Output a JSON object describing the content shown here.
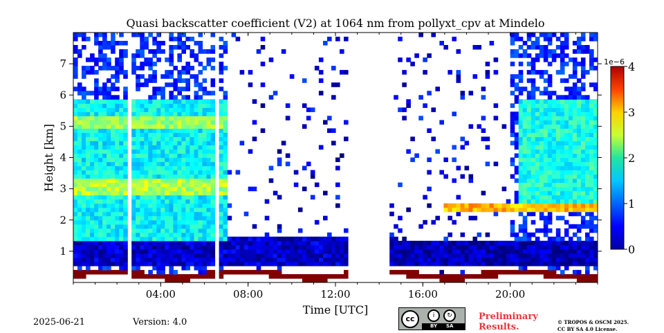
{
  "chart_data": {
    "type": "heatmap",
    "title": "Quasi backscatter coefficient (V2) at 1064 nm from pollyxt_cpv at Mindelo",
    "xlabel": "Time [UTC]",
    "ylabel": "Height [km]",
    "xlim": [
      0,
      24
    ],
    "ylim": [
      0,
      8
    ],
    "x_ticks": [
      {
        "value": 4,
        "label": "04:00"
      },
      {
        "value": 8,
        "label": "08:00"
      },
      {
        "value": 12,
        "label": "12:00"
      },
      {
        "value": 16,
        "label": "16:00"
      },
      {
        "value": 20,
        "label": "20:00"
      }
    ],
    "y_ticks": [
      {
        "value": 1,
        "label": "1"
      },
      {
        "value": 2,
        "label": "2"
      },
      {
        "value": 3,
        "label": "3"
      },
      {
        "value": 4,
        "label": "4"
      },
      {
        "value": 5,
        "label": "5"
      },
      {
        "value": 6,
        "label": "6"
      },
      {
        "value": 7,
        "label": "7"
      }
    ],
    "colorbar": {
      "min": 0,
      "max": 4,
      "exponent_label": "1e−6",
      "ticks": [
        {
          "value": 0,
          "label": "0"
        },
        {
          "value": 1,
          "label": "1"
        },
        {
          "value": 2,
          "label": "2"
        },
        {
          "value": 3,
          "label": "3"
        },
        {
          "value": 4,
          "label": "4"
        }
      ],
      "colormap": "jet"
    },
    "no_data_intervals": [
      [
        2.5,
        2.65
      ],
      [
        6.5,
        6.65
      ],
      [
        12.5,
        14.5
      ]
    ],
    "layers": [
      {
        "t_start": 0,
        "t_end": 12.5,
        "z_bottom": 0.5,
        "z_top": 1.4,
        "value": 0.3
      },
      {
        "t_start": 0,
        "t_end": 7,
        "z_bottom": 1.4,
        "z_top": 5.8,
        "value": 1.5
      },
      {
        "t_start": 0,
        "t_end": 7,
        "z_bottom": 2.8,
        "z_top": 3.3,
        "value": 2.2
      },
      {
        "t_start": 0,
        "t_end": 7,
        "z_bottom": 4.9,
        "z_top": 5.3,
        "value": 2.1
      },
      {
        "t_start": 20.3,
        "t_end": 24,
        "z_bottom": 2.3,
        "z_top": 5.8,
        "value": 1.6
      },
      {
        "t_start": 17,
        "t_end": 24,
        "z_bottom": 2.3,
        "z_top": 2.5,
        "value": 2.8
      },
      {
        "t_start": 14.5,
        "t_end": 24,
        "z_bottom": 0.5,
        "z_top": 1.3,
        "value": 0.2
      },
      {
        "t_start": 20.5,
        "t_end": 24,
        "z_bottom": 0.05,
        "z_top": 0.3,
        "value": 4.0
      }
    ]
  },
  "footer": {
    "date": "2025-06-21",
    "version": "Version: 4.0",
    "preliminary_line1": "Preliminary",
    "preliminary_line2": "Results.",
    "copyright_line1": "© TROPOS & OSCM 2025.",
    "copyright_line2": "CC BY SA 4.0 License.",
    "cc_badge": {
      "cc": "cc",
      "by": "BY",
      "sa": "SA"
    }
  }
}
